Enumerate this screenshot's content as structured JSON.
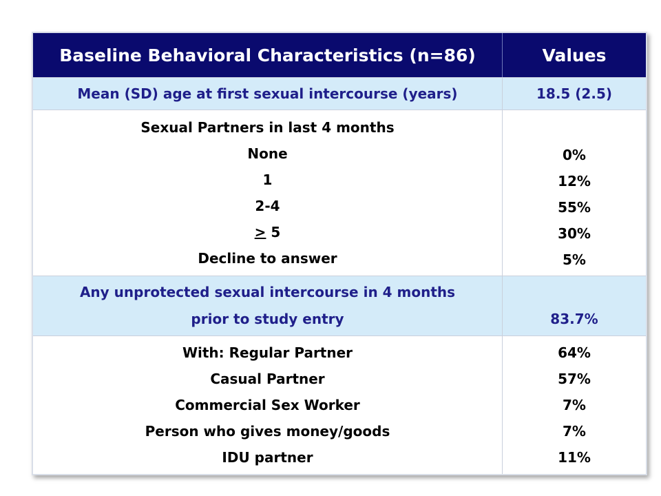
{
  "table": {
    "header": {
      "characteristics": "Baseline Behavioral Characteristics (n=86)",
      "values": "Values"
    },
    "age_row": {
      "label": "Mean (SD) age at first sexual intercourse (years)",
      "value": "18.5 (2.5)"
    },
    "partners_row": {
      "title": "Sexual Partners in last 4 months",
      "items": [
        {
          "label": "None",
          "value": "0%"
        },
        {
          "label": "1",
          "value": "12%"
        },
        {
          "label": "2-4",
          "value": "55%"
        },
        {
          "label_symbol": ">",
          "label_rest": " 5",
          "value": "30%"
        },
        {
          "label": "Decline to answer",
          "value": "5%"
        }
      ]
    },
    "unprotected_row": {
      "label_line1": "Any unprotected sexual intercourse in 4 months",
      "label_line2": "prior to study entry",
      "value": "83.7%"
    },
    "with_row": {
      "items": [
        {
          "label": "With: Regular Partner",
          "value": "64%"
        },
        {
          "label": "Casual Partner",
          "value": "57%"
        },
        {
          "label": "Commercial Sex Worker",
          "value": "7%"
        },
        {
          "label": "Person who gives money/goods",
          "value": "7%"
        },
        {
          "label": "IDU partner",
          "value": "11%"
        }
      ]
    }
  },
  "colors": {
    "header_bg": "#0a0a6e",
    "header_text": "#ffffff",
    "highlight_row_bg": "#d4ebf9",
    "highlight_row_text": "#1f1f8a",
    "body_text": "#000000"
  }
}
